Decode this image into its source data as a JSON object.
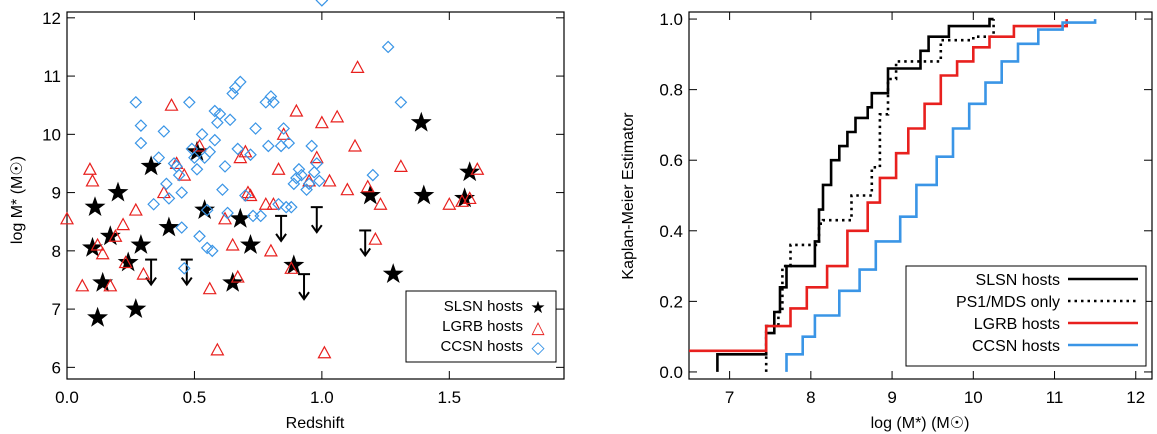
{
  "chart_data": [
    {
      "type": "scatter",
      "title": "",
      "xlabel": "Redshift",
      "ylabel": "log M* (M☉)",
      "xlim": [
        0,
        1.95
      ],
      "ylim": [
        5.8,
        12.1
      ],
      "xticks": [
        0.0,
        0.5,
        1.0,
        1.5
      ],
      "yticks": [
        6,
        7,
        8,
        9,
        10,
        11,
        12
      ],
      "xtick_labels": [
        "0.0",
        "0.5",
        "1.0",
        "1.5"
      ],
      "ytick_labels": [
        "6",
        "7",
        "8",
        "9",
        "10",
        "11",
        "12"
      ],
      "legend_position": "bottom-right",
      "series": [
        {
          "name": "SLSN hosts",
          "marker": "star",
          "color": "#000000",
          "x": [
            0.1,
            0.11,
            0.12,
            0.14,
            0.17,
            0.2,
            0.24,
            0.27,
            0.29,
            0.33,
            0.4,
            0.51,
            0.54,
            0.65,
            0.68,
            0.72,
            0.89,
            1.19,
            1.28,
            1.39,
            1.4,
            1.56,
            1.58
          ],
          "y": [
            8.05,
            8.75,
            6.85,
            7.45,
            8.25,
            9.0,
            7.8,
            7.0,
            8.1,
            9.45,
            8.4,
            9.7,
            8.7,
            7.45,
            8.55,
            8.1,
            7.75,
            8.95,
            7.6,
            10.2,
            8.95,
            8.9,
            9.35
          ]
        },
        {
          "name": "SLSN hosts",
          "marker": "upper-limit",
          "color": "#000000",
          "x": [
            0.33,
            0.47,
            0.84,
            0.93,
            0.98,
            1.17
          ],
          "y": [
            7.85,
            7.85,
            8.6,
            7.6,
            8.75,
            8.35
          ]
        },
        {
          "name": "LGRB hosts",
          "marker": "triangle",
          "color": "#e8201e",
          "x": [
            0.0,
            0.06,
            0.09,
            0.1,
            0.12,
            0.14,
            0.17,
            0.19,
            0.22,
            0.23,
            0.27,
            0.3,
            0.38,
            0.41,
            0.43,
            0.46,
            0.52,
            0.56,
            0.59,
            0.62,
            0.65,
            0.67,
            0.68,
            0.7,
            0.71,
            0.72,
            0.78,
            0.8,
            0.81,
            0.83,
            0.85,
            0.88,
            0.9,
            0.95,
            0.98,
            1.0,
            1.01,
            1.03,
            1.06,
            1.1,
            1.13,
            1.14,
            1.18,
            1.21,
            1.23,
            1.31,
            1.5,
            1.55,
            1.58,
            1.61
          ],
          "y": [
            8.55,
            7.4,
            9.4,
            9.2,
            8.1,
            7.95,
            7.4,
            8.25,
            8.45,
            7.8,
            8.7,
            7.6,
            9.0,
            10.5,
            9.5,
            9.3,
            9.8,
            7.35,
            6.3,
            8.55,
            8.1,
            7.55,
            9.6,
            9.7,
            9.0,
            8.95,
            8.8,
            8.0,
            8.8,
            9.4,
            10.0,
            7.7,
            10.4,
            9.2,
            9.6,
            10.2,
            6.25,
            9.2,
            10.3,
            9.05,
            9.8,
            11.15,
            9.1,
            8.2,
            8.8,
            9.45,
            8.8,
            8.85,
            8.9,
            9.4
          ]
        },
        {
          "name": "CCSN hosts",
          "marker": "diamond",
          "color": "#3a95e6",
          "x": [
            0.27,
            0.29,
            0.29,
            0.34,
            0.36,
            0.38,
            0.39,
            0.4,
            0.42,
            0.43,
            0.44,
            0.45,
            0.45,
            0.46,
            0.48,
            0.49,
            0.5,
            0.51,
            0.52,
            0.53,
            0.54,
            0.55,
            0.55,
            0.56,
            0.57,
            0.58,
            0.58,
            0.59,
            0.6,
            0.61,
            0.62,
            0.63,
            0.64,
            0.65,
            0.66,
            0.67,
            0.68,
            0.7,
            0.72,
            0.73,
            0.74,
            0.76,
            0.78,
            0.79,
            0.8,
            0.81,
            0.83,
            0.84,
            0.85,
            0.86,
            0.87,
            0.88,
            0.89,
            0.9,
            0.91,
            0.92,
            0.94,
            0.95,
            0.96,
            0.97,
            0.98,
            0.99,
            1.0,
            1.2,
            1.26,
            1.31
          ],
          "y": [
            10.55,
            10.15,
            9.85,
            8.8,
            9.6,
            10.05,
            9.15,
            8.9,
            9.5,
            9.45,
            9.3,
            9.0,
            8.4,
            7.7,
            10.55,
            9.75,
            9.6,
            9.4,
            8.25,
            10.0,
            9.6,
            8.7,
            8.05,
            9.7,
            8.0,
            10.4,
            9.9,
            10.2,
            10.35,
            9.05,
            9.45,
            8.65,
            10.25,
            10.7,
            10.8,
            9.75,
            10.9,
            8.95,
            9.65,
            8.6,
            10.1,
            8.6,
            10.55,
            9.8,
            10.65,
            10.55,
            8.8,
            9.8,
            10.1,
            8.75,
            9.85,
            8.75,
            9.15,
            9.25,
            9.4,
            9.3,
            9.05,
            9.15,
            9.8,
            9.35,
            9.5,
            9.2,
            12.3,
            9.3,
            11.5,
            10.55
          ]
        }
      ]
    },
    {
      "type": "line",
      "title": "",
      "xlabel": "log (M*) (M☉)",
      "ylabel": "Kaplan-Meier Estimator",
      "xlim": [
        6.5,
        12.2
      ],
      "ylim": [
        -0.02,
        1.02
      ],
      "xticks": [
        7,
        8,
        9,
        10,
        11,
        12
      ],
      "yticks": [
        0.0,
        0.2,
        0.4,
        0.6,
        0.8,
        1.0
      ],
      "xtick_labels": [
        "7",
        "8",
        "9",
        "10",
        "11",
        "12"
      ],
      "ytick_labels": [
        "0.0",
        "0.2",
        "0.4",
        "0.6",
        "0.8",
        "1.0"
      ],
      "legend_position": "bottom-right",
      "series": [
        {
          "name": "SLSN hosts",
          "style": "solid",
          "color": "#000000",
          "x": [
            6.85,
            6.85,
            7.45,
            7.45,
            7.55,
            7.55,
            7.62,
            7.62,
            7.7,
            7.7,
            8.05,
            8.05,
            8.1,
            8.1,
            8.15,
            8.15,
            8.25,
            8.25,
            8.35,
            8.35,
            8.45,
            8.45,
            8.55,
            8.55,
            8.7,
            8.7,
            8.75,
            8.75,
            8.95,
            8.95,
            9.35,
            9.35,
            9.45,
            9.45,
            9.7,
            9.7,
            10.2,
            10.2,
            10.25
          ],
          "y": [
            0.0,
            0.05,
            0.05,
            0.11,
            0.11,
            0.17,
            0.17,
            0.24,
            0.24,
            0.3,
            0.3,
            0.37,
            0.37,
            0.46,
            0.46,
            0.53,
            0.53,
            0.6,
            0.6,
            0.64,
            0.64,
            0.68,
            0.68,
            0.72,
            0.72,
            0.75,
            0.75,
            0.79,
            0.79,
            0.86,
            0.86,
            0.91,
            0.91,
            0.95,
            0.95,
            0.98,
            0.98,
            1.0,
            1.0
          ]
        },
        {
          "name": "PS1/MDS only",
          "style": "dotted",
          "color": "#000000",
          "x": [
            7.45,
            7.45,
            7.6,
            7.6,
            7.65,
            7.65,
            7.75,
            7.75,
            8.1,
            8.1,
            8.15,
            8.15,
            8.5,
            8.5,
            8.75,
            8.75,
            8.85,
            8.85,
            8.95,
            8.95,
            9.05,
            9.05,
            9.6,
            9.6,
            10.0,
            10.0,
            10.25,
            10.25
          ],
          "y": [
            0.0,
            0.13,
            0.13,
            0.17,
            0.17,
            0.3,
            0.3,
            0.36,
            0.36,
            0.42,
            0.42,
            0.43,
            0.43,
            0.5,
            0.5,
            0.58,
            0.58,
            0.73,
            0.73,
            0.83,
            0.83,
            0.88,
            0.88,
            0.94,
            0.94,
            0.95,
            0.95,
            1.0
          ]
        },
        {
          "name": "LGRB hosts",
          "style": "solid",
          "color": "#e8201e",
          "x": [
            6.25,
            7.45,
            7.45,
            7.75,
            7.75,
            7.95,
            7.95,
            8.2,
            8.2,
            8.45,
            8.45,
            8.7,
            8.7,
            8.85,
            8.85,
            9.05,
            9.05,
            9.2,
            9.2,
            9.4,
            9.4,
            9.6,
            9.6,
            9.8,
            9.8,
            10.0,
            10.0,
            10.2,
            10.2,
            10.5,
            10.5,
            11.15,
            11.15
          ],
          "y": [
            0.06,
            0.06,
            0.13,
            0.13,
            0.18,
            0.18,
            0.24,
            0.24,
            0.3,
            0.3,
            0.4,
            0.4,
            0.48,
            0.48,
            0.55,
            0.55,
            0.62,
            0.62,
            0.69,
            0.69,
            0.76,
            0.76,
            0.84,
            0.84,
            0.88,
            0.88,
            0.92,
            0.92,
            0.95,
            0.95,
            0.98,
            0.98,
            1.0
          ]
        },
        {
          "name": "CCSN hosts",
          "style": "solid",
          "color": "#3a95e6",
          "x": [
            7.7,
            7.7,
            7.9,
            7.9,
            8.05,
            8.05,
            8.35,
            8.35,
            8.6,
            8.6,
            8.8,
            8.8,
            9.1,
            9.1,
            9.3,
            9.3,
            9.55,
            9.55,
            9.75,
            9.75,
            9.95,
            9.95,
            10.15,
            10.15,
            10.35,
            10.35,
            10.55,
            10.55,
            10.8,
            10.8,
            11.1,
            11.1,
            11.5,
            11.5
          ],
          "y": [
            0.0,
            0.05,
            0.05,
            0.1,
            0.1,
            0.16,
            0.16,
            0.23,
            0.23,
            0.29,
            0.29,
            0.37,
            0.37,
            0.44,
            0.44,
            0.53,
            0.53,
            0.61,
            0.61,
            0.69,
            0.69,
            0.76,
            0.76,
            0.82,
            0.82,
            0.88,
            0.88,
            0.93,
            0.93,
            0.97,
            0.97,
            0.99,
            0.99,
            1.0
          ]
        }
      ]
    }
  ],
  "legend_left": {
    "items": [
      {
        "label": "SLSN hosts",
        "symbol": "★"
      },
      {
        "label": "LGRB hosts",
        "symbol": "△"
      },
      {
        "label": "CCSN hosts",
        "symbol": "◇"
      }
    ]
  },
  "legend_right": {
    "items": [
      {
        "label": "SLSN hosts"
      },
      {
        "label": "PS1/MDS only"
      },
      {
        "label": "LGRB hosts"
      },
      {
        "label": "CCSN hosts"
      }
    ]
  }
}
